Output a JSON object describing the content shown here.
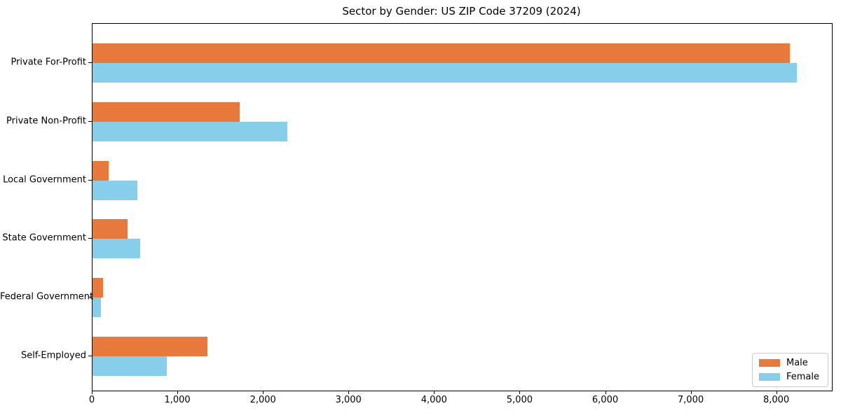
{
  "chart_data": {
    "type": "bar",
    "orientation": "horizontal",
    "title": "Sector by Gender: US ZIP Code 37209 (2024)",
    "categories": [
      "Private For-Profit",
      "Private Non-Profit",
      "Local Government",
      "State Government",
      "Federal Government",
      "Self-Employed"
    ],
    "series": [
      {
        "name": "Male",
        "color": "#E8793D",
        "values": [
          8150,
          1720,
          185,
          410,
          125,
          1340
        ]
      },
      {
        "name": "Female",
        "color": "#87CEEB",
        "values": [
          8230,
          2280,
          520,
          560,
          95,
          870
        ]
      }
    ],
    "xlabel": "",
    "ylabel": "",
    "xlim": [
      0,
      8642
    ],
    "xticks": [
      0,
      1000,
      2000,
      3000,
      4000,
      5000,
      6000,
      7000,
      8000
    ],
    "xtick_labels": [
      "0",
      "1,000",
      "2,000",
      "3,000",
      "4,000",
      "5,000",
      "6,000",
      "7,000",
      "8,000"
    ],
    "grid": false,
    "legend_position": "lower right",
    "legend_entries": [
      "Male",
      "Female"
    ]
  }
}
